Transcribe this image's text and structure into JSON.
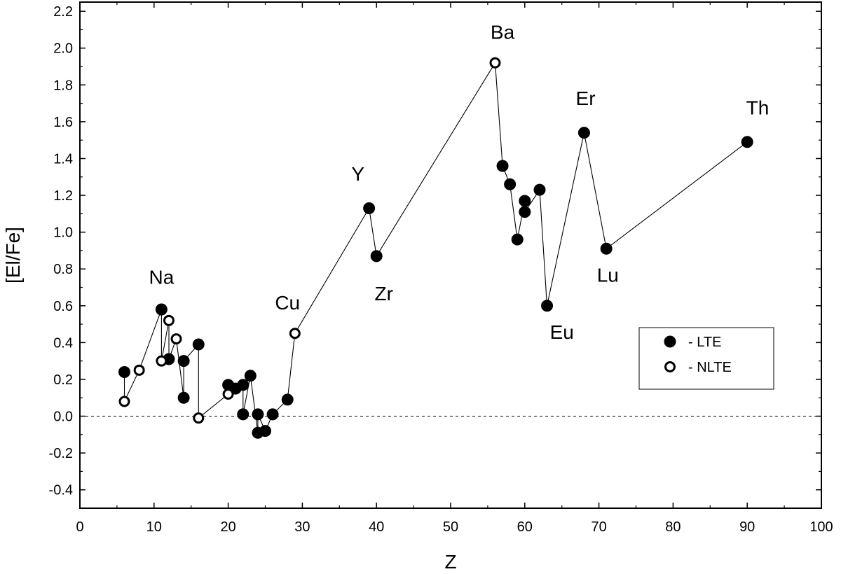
{
  "chart_data": {
    "type": "scatter",
    "title": "",
    "xlabel": "Z",
    "ylabel": "[El/Fe]",
    "xlim": [
      0,
      100
    ],
    "ylim": [
      -0.5,
      2.25
    ],
    "x_ticks": [
      0,
      10,
      20,
      30,
      40,
      50,
      60,
      70,
      80,
      90,
      100
    ],
    "y_ticks": [
      -0.4,
      -0.2,
      0.0,
      0.2,
      0.4,
      0.6,
      0.8,
      1.0,
      1.2,
      1.4,
      1.6,
      1.8,
      2.0,
      2.2
    ],
    "y_tick_labels": [
      "-0.4",
      "-0.2",
      "0.0",
      "0.2",
      "0.4",
      "0.6",
      "0.8",
      "1.0",
      "1.2",
      "1.4",
      "1.6",
      "1.8",
      "2.0",
      "2.2"
    ],
    "grid": false,
    "reference_line": {
      "y": 0.0,
      "style": "dashed"
    },
    "legend": {
      "placement": "right",
      "entries": [
        {
          "label": "- LTE",
          "marker": "filled-circle"
        },
        {
          "label": "- NLTE",
          "marker": "open-circle"
        }
      ]
    },
    "series": [
      {
        "name": "LTE",
        "marker": "filled",
        "points": [
          {
            "x": 6,
            "y": 0.24
          },
          {
            "x": 11,
            "y": 0.58
          },
          {
            "x": 12,
            "y": 0.31
          },
          {
            "x": 14,
            "y": 0.3
          },
          {
            "x": 14,
            "y": 0.1
          },
          {
            "x": 16,
            "y": 0.39
          },
          {
            "x": 20,
            "y": 0.17
          },
          {
            "x": 21,
            "y": 0.15
          },
          {
            "x": 22,
            "y": 0.17
          },
          {
            "x": 22,
            "y": 0.01
          },
          {
            "x": 23,
            "y": 0.22
          },
          {
            "x": 24,
            "y": 0.01
          },
          {
            "x": 24,
            "y": -0.09
          },
          {
            "x": 25,
            "y": -0.08
          },
          {
            "x": 26,
            "y": 0.01
          },
          {
            "x": 28,
            "y": 0.09
          },
          {
            "x": 39,
            "y": 1.13
          },
          {
            "x": 40,
            "y": 0.87
          },
          {
            "x": 57,
            "y": 1.36
          },
          {
            "x": 58,
            "y": 1.26
          },
          {
            "x": 59,
            "y": 0.96
          },
          {
            "x": 60,
            "y": 1.17
          },
          {
            "x": 60,
            "y": 1.11
          },
          {
            "x": 62,
            "y": 1.23
          },
          {
            "x": 63,
            "y": 0.6
          },
          {
            "x": 68,
            "y": 1.54
          },
          {
            "x": 71,
            "y": 0.91
          },
          {
            "x": 90,
            "y": 1.49
          }
        ]
      },
      {
        "name": "NLTE",
        "marker": "open",
        "points": [
          {
            "x": 6,
            "y": 0.08
          },
          {
            "x": 8,
            "y": 0.25
          },
          {
            "x": 11,
            "y": 0.3
          },
          {
            "x": 12,
            "y": 0.52
          },
          {
            "x": 13,
            "y": 0.42
          },
          {
            "x": 16,
            "y": -0.01
          },
          {
            "x": 20,
            "y": 0.12
          },
          {
            "x": 29,
            "y": 0.45
          },
          {
            "x": 56,
            "y": 1.92
          }
        ]
      }
    ],
    "connecting_line": [
      {
        "x": 6,
        "y": 0.24
      },
      {
        "x": 6,
        "y": 0.08
      },
      {
        "x": 8,
        "y": 0.25
      },
      {
        "x": 11,
        "y": 0.58
      },
      {
        "x": 11,
        "y": 0.3
      },
      {
        "x": 12,
        "y": 0.52
      },
      {
        "x": 12,
        "y": 0.31
      },
      {
        "x": 13,
        "y": 0.42
      },
      {
        "x": 14,
        "y": 0.1
      },
      {
        "x": 14,
        "y": 0.3
      },
      {
        "x": 16,
        "y": 0.39
      },
      {
        "x": 16,
        "y": -0.01
      },
      {
        "x": 20,
        "y": 0.12
      },
      {
        "x": 20,
        "y": 0.17
      },
      {
        "x": 21,
        "y": 0.15
      },
      {
        "x": 22,
        "y": 0.17
      },
      {
        "x": 22,
        "y": 0.01
      },
      {
        "x": 23,
        "y": 0.22
      },
      {
        "x": 24,
        "y": -0.09
      },
      {
        "x": 24,
        "y": 0.01
      },
      {
        "x": 25,
        "y": -0.08
      },
      {
        "x": 26,
        "y": 0.01
      },
      {
        "x": 28,
        "y": 0.09
      },
      {
        "x": 29,
        "y": 0.45
      },
      {
        "x": 39,
        "y": 1.13
      },
      {
        "x": 40,
        "y": 0.87
      },
      {
        "x": 56,
        "y": 1.92
      },
      {
        "x": 57,
        "y": 1.36
      },
      {
        "x": 58,
        "y": 1.26
      },
      {
        "x": 59,
        "y": 0.96
      },
      {
        "x": 60,
        "y": 1.17
      },
      {
        "x": 60,
        "y": 1.11
      },
      {
        "x": 62,
        "y": 1.23
      },
      {
        "x": 63,
        "y": 0.6
      },
      {
        "x": 68,
        "y": 1.54
      },
      {
        "x": 71,
        "y": 0.91
      },
      {
        "x": 90,
        "y": 1.49
      }
    ],
    "annotations": [
      {
        "text": "Na",
        "x": 11,
        "y": 0.72
      },
      {
        "text": "Cu",
        "x": 28,
        "y": 0.58
      },
      {
        "text": "Y",
        "x": 37.5,
        "y": 1.28
      },
      {
        "text": "Zr",
        "x": 41,
        "y": 0.63
      },
      {
        "text": "Ba",
        "x": 57,
        "y": 2.05
      },
      {
        "text": "Eu",
        "x": 65,
        "y": 0.42
      },
      {
        "text": "Er",
        "x": 68.2,
        "y": 1.69
      },
      {
        "text": "Lu",
        "x": 71.2,
        "y": 0.73
      },
      {
        "text": "Th",
        "x": 91.4,
        "y": 1.64
      }
    ]
  }
}
